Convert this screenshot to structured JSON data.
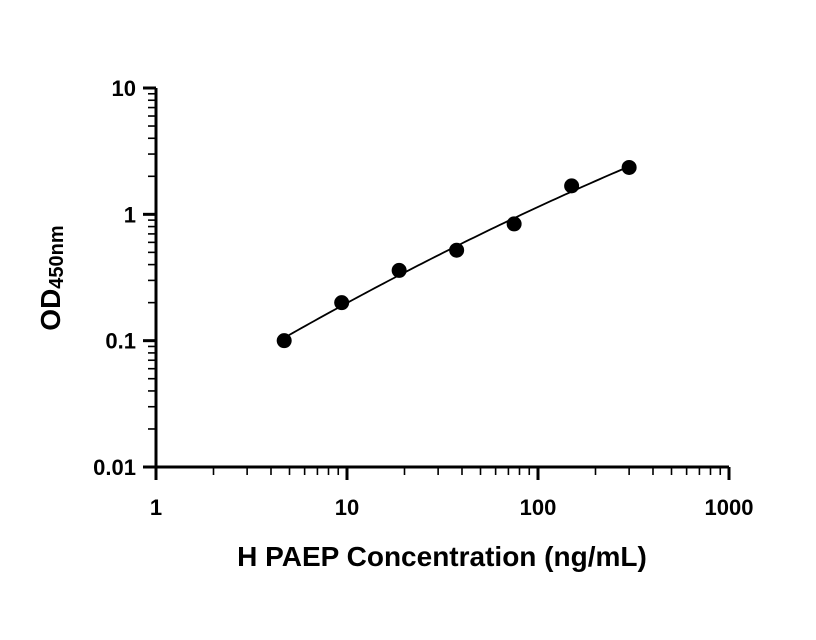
{
  "chart_data": {
    "type": "scatter",
    "xlabel": "H PAEP Concentration (ng/mL)",
    "ylabel_main": "OD",
    "ylabel_sub": "450nm",
    "x_scale": "log",
    "y_scale": "log",
    "xlim": [
      1,
      1000
    ],
    "ylim": [
      0.01,
      10
    ],
    "x_ticks": [
      "1",
      "10",
      "100",
      "1000"
    ],
    "y_ticks": [
      "0.01",
      "0.1",
      "1",
      "10"
    ],
    "grid": false,
    "fit_curve": true,
    "series": [
      {
        "x": [
          4.69,
          9.38,
          18.75,
          37.5,
          75,
          150,
          300
        ],
        "y": [
          0.1,
          0.2,
          0.36,
          0.52,
          0.84,
          1.68,
          2.35
        ]
      }
    ]
  }
}
